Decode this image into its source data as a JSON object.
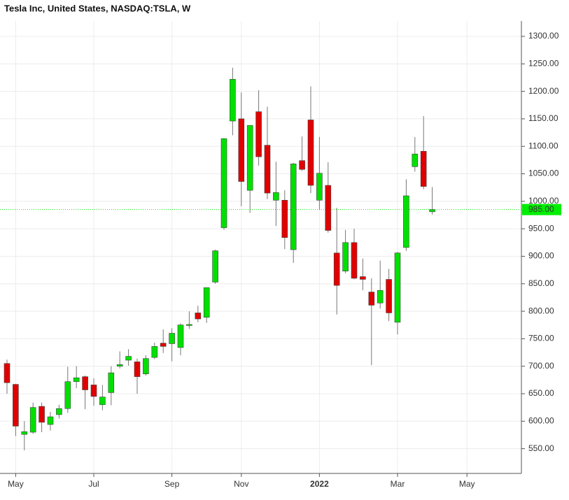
{
  "chart_data": {
    "type": "candlestick",
    "title": "Tesla Inc, United States, NASDAQ:TSLA, W",
    "categories": [
      null,
      "May",
      null,
      null,
      null,
      null,
      null,
      null,
      null,
      null,
      "Jul",
      null,
      null,
      null,
      null,
      null,
      null,
      null,
      null,
      "Sep",
      null,
      null,
      null,
      null,
      null,
      null,
      null,
      "Nov",
      null,
      null,
      null,
      null,
      null,
      null,
      null,
      null,
      "2022",
      null,
      null,
      null,
      null,
      null,
      null,
      null,
      null,
      "Mar",
      null,
      null,
      null,
      null,
      null,
      null,
      null,
      "May",
      null,
      null,
      null,
      null,
      null,
      null
    ],
    "open": [
      705,
      667,
      576,
      580,
      627,
      594,
      612,
      623,
      672,
      681,
      666,
      630,
      652,
      700,
      711,
      708,
      686,
      716,
      742,
      741,
      734,
      774,
      797,
      789,
      853,
      952,
      1146,
      1150,
      1020,
      1163,
      1102,
      1002,
      1002,
      912,
      1074,
      1148,
      1002,
      1029,
      906,
      873,
      925,
      863,
      835,
      815,
      858,
      780,
      916,
      1063,
      1091,
      981,
      null,
      null,
      null,
      null,
      null,
      null,
      null,
      null,
      null,
      null
    ],
    "high": [
      712,
      668,
      600,
      634,
      634,
      617,
      630,
      699,
      700,
      683,
      678,
      666,
      700,
      727,
      731,
      714,
      720,
      743,
      767,
      769,
      778,
      800,
      810,
      843,
      912,
      1115,
      1243,
      1198,
      1138,
      1202,
      1172,
      1072,
      1020,
      1070,
      1118,
      1209,
      1117,
      1071,
      988,
      948,
      950,
      896,
      860,
      892,
      877,
      908,
      1040,
      1117,
      1155,
      1026,
      null,
      null,
      null,
      null,
      null,
      null,
      null,
      null,
      null,
      null
    ],
    "low": [
      650,
      573,
      547,
      577,
      580,
      583,
      605,
      615,
      660,
      622,
      628,
      620,
      629,
      696,
      701,
      650,
      683,
      713,
      724,
      709,
      720,
      768,
      780,
      779,
      850,
      948,
      1120,
      991,
      979,
      1065,
      1004,
      955,
      913,
      888,
      1055,
      1015,
      985,
      943,
      794,
      869,
      858,
      838,
      702,
      805,
      782,
      758,
      910,
      1054,
      1022,
      976,
      null,
      null,
      null,
      null,
      null,
      null,
      null,
      null,
      null,
      null
    ],
    "close": [
      670,
      591,
      581,
      625,
      598,
      608,
      623,
      672,
      679,
      657,
      645,
      644,
      688,
      703,
      718,
      681,
      714,
      736,
      736,
      760,
      775,
      776,
      786,
      843,
      910,
      1114,
      1222,
      1036,
      1138,
      1081,
      1015,
      1016,
      934,
      1068,
      1058,
      1029,
      1051,
      947,
      847,
      925,
      860,
      858,
      811,
      838,
      797,
      906,
      1010,
      1086,
      1027,
      985,
      null,
      null,
      null,
      null,
      null,
      null,
      null,
      null,
      null,
      null
    ],
    "up_color": "#00e000",
    "down_color": "#e00000",
    "last_price": {
      "value": 985,
      "label": "985.00"
    },
    "last_price_color": "#00ee00",
    "ylim": [
      505,
      1328
    ],
    "yticks": [
      {
        "value": 550,
        "label": "550.00"
      },
      {
        "value": 600,
        "label": "600.00"
      },
      {
        "value": 650,
        "label": "650.00"
      },
      {
        "value": 700,
        "label": "700.00"
      },
      {
        "value": 750,
        "label": "750.00"
      },
      {
        "value": 800,
        "label": "800.00"
      },
      {
        "value": 850,
        "label": "850.00"
      },
      {
        "value": 900,
        "label": "900.00"
      },
      {
        "value": 950,
        "label": "950.00"
      },
      {
        "value": 1000,
        "label": "1000.00"
      },
      {
        "value": 1050,
        "label": "1050.00"
      },
      {
        "value": 1100,
        "label": "1100.00"
      },
      {
        "value": 1150,
        "label": "1150.00"
      },
      {
        "value": 1200,
        "label": "1200.00"
      },
      {
        "value": 1250,
        "label": "1250.00"
      },
      {
        "value": 1300,
        "label": "1300.00"
      }
    ],
    "grid": true
  }
}
